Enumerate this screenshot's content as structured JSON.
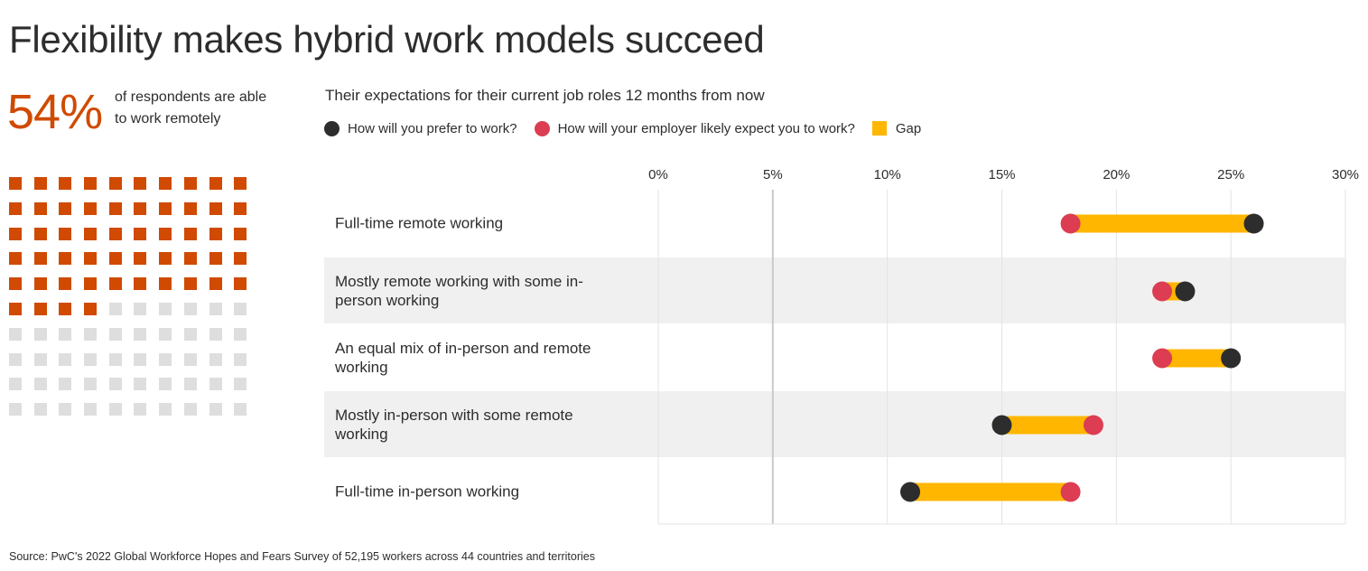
{
  "title": "Flexibility makes hybrid work models succeed",
  "stat": {
    "value": "54%",
    "text": "of respondents are able to work remotely",
    "filled_fraction": 0.54
  },
  "subtitle": "Their expectations for their current job roles 12 months from now",
  "legend": [
    {
      "label": "How will you prefer to work?",
      "color": "#2d2d2d",
      "shape": "circle"
    },
    {
      "label": "How will your employer likely expect you to work?",
      "color": "#dc3d52",
      "shape": "circle"
    },
    {
      "label": "Gap",
      "color": "#ffb600",
      "shape": "square"
    }
  ],
  "source": "Source: PwC's 2022 Global Workforce Hopes and Fears Survey of 52,195 workers across 44 countries and territories",
  "colors": {
    "accent": "#d04a02",
    "prefer": "#2d2d2d",
    "employer": "#dc3d52",
    "gap": "#ffb600",
    "waffle_empty": "#dedede",
    "row_band": "#f0f0f0"
  },
  "chart_data": {
    "type": "dumbbell",
    "xlim": [
      0,
      30
    ],
    "ticks": [
      "0%",
      "5%",
      "10%",
      "15%",
      "20%",
      "25%",
      "30%"
    ],
    "tick_values": [
      0,
      5,
      10,
      15,
      20,
      25,
      30
    ],
    "grid": true,
    "categories": [
      "Full-time remote working",
      "Mostly remote working with some in-person working",
      "An equal mix of in-person and remote working",
      "Mostly in-person with some remote working",
      "Full-time in-person working"
    ],
    "category_lines": [
      [
        "Full-time remote working"
      ],
      [
        "Mostly remote working with some in-",
        "person working"
      ],
      [
        "An equal mix of in-person and remote",
        "working"
      ],
      [
        "Mostly in-person with some remote",
        "working"
      ],
      [
        "Full-time in-person working"
      ]
    ],
    "series": [
      {
        "name": "How will you prefer to work?",
        "values": [
          26,
          23,
          25,
          15,
          11
        ]
      },
      {
        "name": "How will your employer likely expect you to work?",
        "values": [
          18,
          22,
          22,
          19,
          18
        ]
      }
    ]
  }
}
